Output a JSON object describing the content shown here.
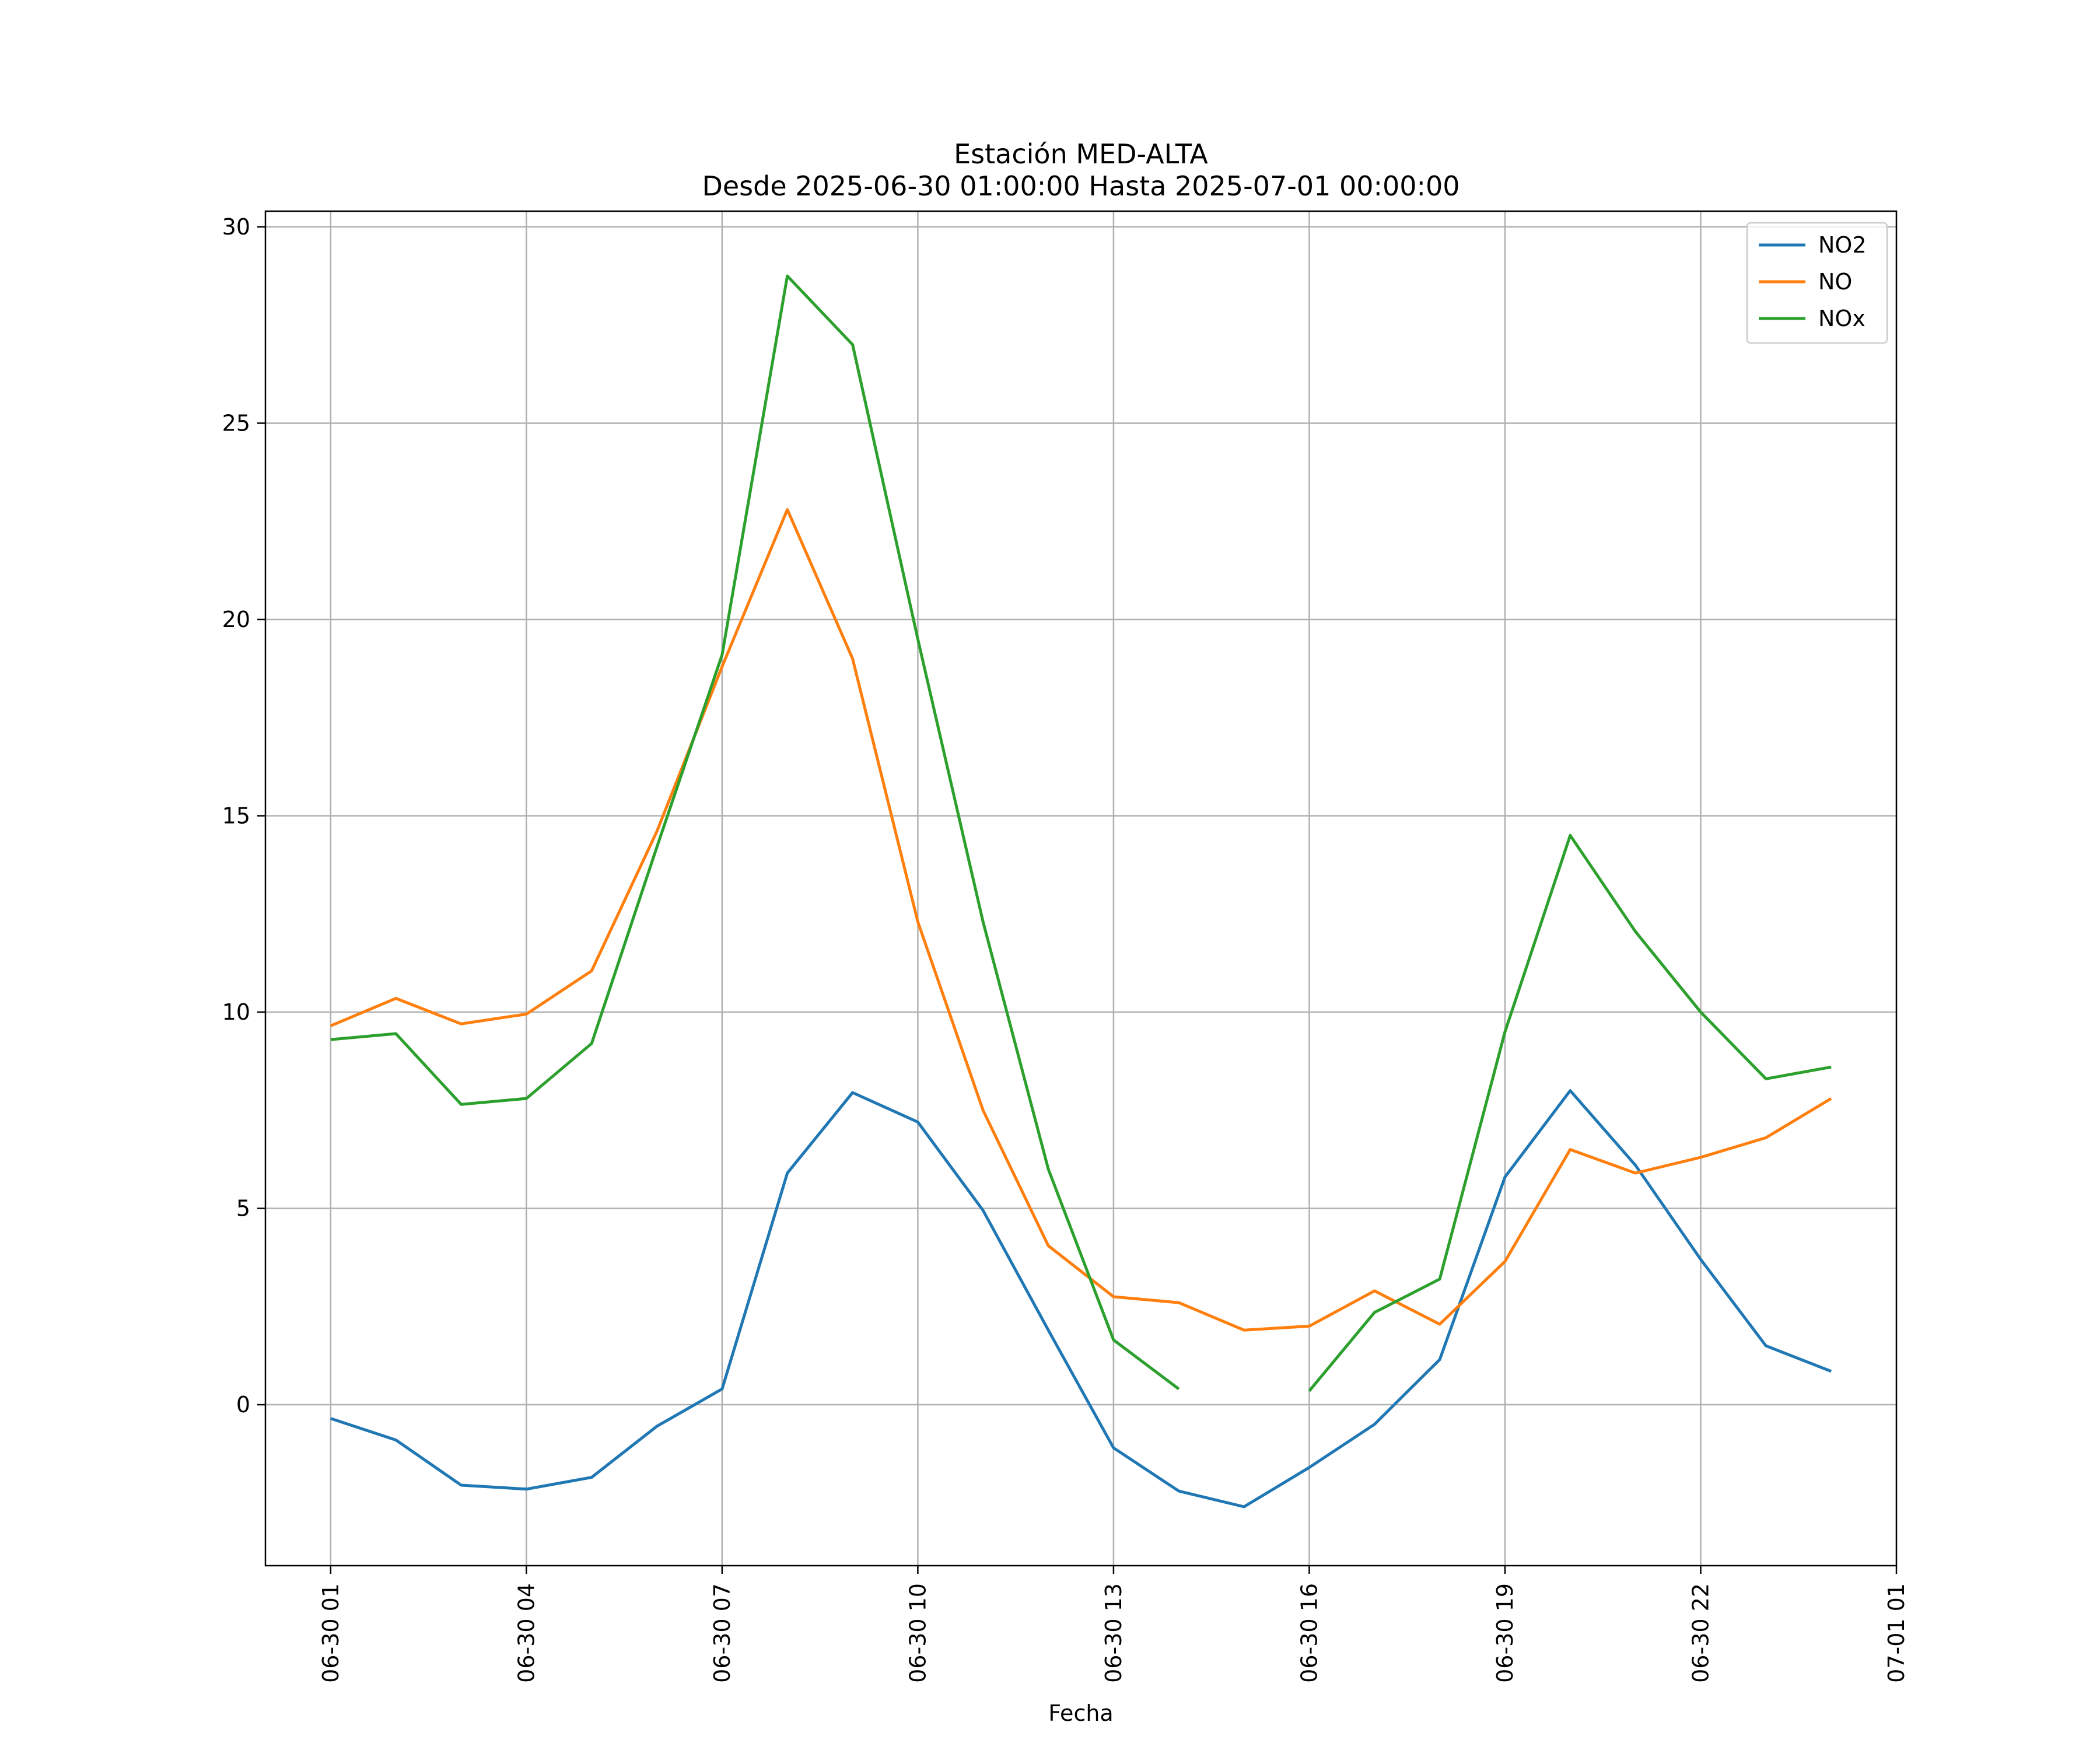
{
  "chart_data": {
    "type": "line",
    "title_line1": "Estación MED-ALTA",
    "title_line2": "Desde 2025-06-30 01:00:00 Hasta 2025-07-01 00:00:00",
    "xlabel": "Fecha",
    "ylabel": "",
    "ylim": [
      -4.1,
      30.4
    ],
    "xlim": [
      "06-30 00",
      "07-01 01"
    ],
    "grid": true,
    "legend_position": "top-right",
    "x": [
      "06-30 01",
      "06-30 02",
      "06-30 03",
      "06-30 04",
      "06-30 05",
      "06-30 06",
      "06-30 07",
      "06-30 08",
      "06-30 09",
      "06-30 10",
      "06-30 11",
      "06-30 12",
      "06-30 13",
      "06-30 14",
      "06-30 15",
      "06-30 16",
      "06-30 17",
      "06-30 18",
      "06-30 19",
      "06-30 20",
      "06-30 21",
      "06-30 22",
      "06-30 23",
      "07-01 00"
    ],
    "x_ticks": [
      "06-30 01",
      "06-30 04",
      "06-30 07",
      "06-30 10",
      "06-30 13",
      "06-30 16",
      "06-30 19",
      "06-30 22",
      "07-01 01"
    ],
    "y_ticks": [
      0,
      5,
      10,
      15,
      20,
      25,
      30
    ],
    "series": [
      {
        "name": "NO2",
        "color": "#1f77b4",
        "values": [
          -0.35,
          -0.9,
          -2.05,
          -2.15,
          -1.85,
          -0.55,
          0.4,
          5.9,
          7.95,
          7.2,
          4.95,
          1.9,
          -1.1,
          -2.2,
          -2.6,
          -1.6,
          -0.5,
          1.15,
          5.8,
          8.0,
          6.1,
          3.7,
          1.5,
          0.85
        ]
      },
      {
        "name": "NO",
        "color": "#ff7f0e",
        "values": [
          9.65,
          10.35,
          9.7,
          9.95,
          11.05,
          14.6,
          18.8,
          22.8,
          19.0,
          12.3,
          7.5,
          4.05,
          2.75,
          2.6,
          1.9,
          2.0,
          2.9,
          2.05,
          3.65,
          6.5,
          5.9,
          6.3,
          6.8,
          7.8
        ]
      },
      {
        "name": "NOx",
        "color": "#2ca02c",
        "values": [
          9.3,
          9.45,
          7.65,
          7.8,
          9.2,
          14.2,
          19.1,
          28.75,
          27.0,
          19.5,
          12.3,
          6.0,
          1.65,
          0.4,
          null,
          0.35,
          2.35,
          3.2,
          9.5,
          14.5,
          12.05,
          10.0,
          8.3,
          8.6
        ]
      }
    ]
  }
}
